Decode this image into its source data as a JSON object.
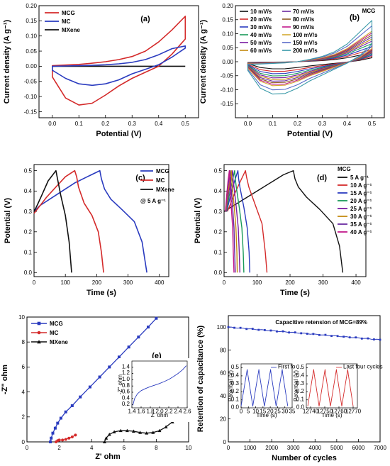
{
  "chart_data": [
    {
      "id": "a",
      "type": "line",
      "panel_label": "(a)",
      "xlabel": "Potential (V)",
      "ylabel": "Current density (A g⁻¹)",
      "xlim": [
        -0.05,
        0.55
      ],
      "ylim": [
        -0.17,
        0.2
      ],
      "xticks": [
        0.0,
        0.1,
        0.2,
        0.3,
        0.4,
        0.5
      ],
      "yticks": [
        -0.15,
        -0.1,
        -0.05,
        0.0,
        0.05,
        0.1,
        0.15,
        0.2
      ],
      "legend": "top-left",
      "series": [
        {
          "name": "MCG",
          "color": "#d42a2a",
          "x": [
            0,
            0.05,
            0.1,
            0.15,
            0.2,
            0.25,
            0.3,
            0.35,
            0.4,
            0.45,
            0.5,
            0.5,
            0.45,
            0.4,
            0.35,
            0.3,
            0.25,
            0.2,
            0.15,
            0.1,
            0.05,
            0
          ],
          "y": [
            0.002,
            0.004,
            0.006,
            0.01,
            0.015,
            0.022,
            0.032,
            0.05,
            0.08,
            0.12,
            0.165,
            0.09,
            0.04,
            0.0,
            -0.02,
            -0.04,
            -0.065,
            -0.095,
            -0.122,
            -0.128,
            -0.105,
            -0.035
          ]
        },
        {
          "name": "MC",
          "color": "#2a3bbf",
          "x": [
            0,
            0.05,
            0.1,
            0.15,
            0.2,
            0.25,
            0.3,
            0.35,
            0.4,
            0.45,
            0.5,
            0.5,
            0.45,
            0.4,
            0.35,
            0.3,
            0.25,
            0.2,
            0.15,
            0.1,
            0.05,
            0
          ],
          "y": [
            0.0,
            0.001,
            0.002,
            0.003,
            0.005,
            0.008,
            0.013,
            0.022,
            0.038,
            0.058,
            0.067,
            0.06,
            0.03,
            0.005,
            -0.01,
            -0.025,
            -0.045,
            -0.058,
            -0.063,
            -0.058,
            -0.04,
            -0.013
          ]
        },
        {
          "name": "MXene",
          "color": "#111111",
          "x": [
            0,
            0.5,
            0.5,
            0
          ],
          "y": [
            0.001,
            0.002,
            -0.001,
            -0.002
          ]
        }
      ]
    },
    {
      "id": "b",
      "type": "line",
      "panel_label": "(b)",
      "title": "MCG",
      "xlabel": "Potential (V)",
      "ylabel": "Current density (A g⁻¹)",
      "xlim": [
        -0.05,
        0.55
      ],
      "ylim": [
        -0.2,
        0.2
      ],
      "xticks": [
        0.0,
        0.1,
        0.2,
        0.3,
        0.4,
        0.5
      ],
      "yticks": [
        -0.15,
        -0.1,
        -0.05,
        0.0,
        0.05,
        0.1,
        0.15,
        0.2
      ],
      "legend": "top-left",
      "series": [
        {
          "name": "10 mV/s",
          "color": "#111111",
          "scale": 0.22
        },
        {
          "name": "20 mV/s",
          "color": "#d42a2a",
          "scale": 0.3
        },
        {
          "name": "30 mV/s",
          "color": "#2a3bbf",
          "scale": 0.37
        },
        {
          "name": "40 mV/s",
          "color": "#1a9a5a",
          "scale": 0.44
        },
        {
          "name": "50 mV/s",
          "color": "#7a1aa0",
          "scale": 0.5
        },
        {
          "name": "60 mV/s",
          "color": "#c48a10",
          "scale": 0.55
        },
        {
          "name": "70 mV/s",
          "color": "#6a2aa0",
          "scale": 0.6
        },
        {
          "name": "80 mV/s",
          "color": "#8a5a20",
          "scale": 0.65
        },
        {
          "name": "90 mV/s",
          "color": "#c2188a",
          "scale": 0.7
        },
        {
          "name": "100 mV/s",
          "color": "#d4aa30",
          "scale": 0.74
        },
        {
          "name": "150 mV/s",
          "color": "#5a6ac8",
          "scale": 0.87
        },
        {
          "name": "200 mV/s",
          "color": "#3a9aa8",
          "scale": 1.0
        }
      ],
      "base_shape": {
        "x": [
          0,
          0.05,
          0.1,
          0.15,
          0.2,
          0.25,
          0.3,
          0.35,
          0.4,
          0.45,
          0.5,
          0.5,
          0.45,
          0.4,
          0.35,
          0.3,
          0.25,
          0.2,
          0.15,
          0.1,
          0.05,
          0
        ],
        "y": [
          -0.01,
          -0.008,
          -0.006,
          -0.004,
          0.0,
          0.008,
          0.018,
          0.034,
          0.06,
          0.1,
          0.14,
          0.06,
          0.02,
          -0.005,
          -0.025,
          -0.045,
          -0.065,
          -0.09,
          -0.108,
          -0.11,
          -0.09,
          -0.03
        ]
      }
    },
    {
      "id": "c",
      "type": "line",
      "panel_label": "(c)",
      "annotation": "@ 5 A g⁻¹",
      "xlabel": "Time (s)",
      "ylabel": "Potential (V)",
      "xlim": [
        0,
        430
      ],
      "ylim": [
        -0.02,
        0.53
      ],
      "xticks": [
        0,
        100,
        200,
        300,
        400
      ],
      "yticks": [
        0.0,
        0.1,
        0.2,
        0.3,
        0.4,
        0.5
      ],
      "legend": "right",
      "series": [
        {
          "name": "MCG",
          "color": "#2a3bbf",
          "x": [
            0,
            20,
            50,
            90,
            130,
            170,
            210,
            215,
            225,
            245,
            280,
            320,
            345,
            360
          ],
          "y": [
            0.3,
            0.33,
            0.36,
            0.4,
            0.44,
            0.47,
            0.5,
            0.46,
            0.41,
            0.36,
            0.31,
            0.25,
            0.15,
            0.0
          ]
        },
        {
          "name": "MC",
          "color": "#d42a2a",
          "x": [
            0,
            15,
            40,
            70,
            100,
            130,
            136,
            142,
            160,
            185,
            205,
            215,
            222
          ],
          "y": [
            0.29,
            0.32,
            0.37,
            0.42,
            0.47,
            0.5,
            0.47,
            0.42,
            0.34,
            0.28,
            0.2,
            0.1,
            0.0
          ]
        },
        {
          "name": "MXene",
          "color": "#111111",
          "x": [
            0,
            10,
            25,
            45,
            70,
            75,
            85,
            100,
            112,
            120
          ],
          "y": [
            0.3,
            0.33,
            0.38,
            0.45,
            0.5,
            0.46,
            0.38,
            0.28,
            0.15,
            0.0
          ]
        }
      ]
    },
    {
      "id": "d",
      "type": "line",
      "panel_label": "(d)",
      "title": "MCG",
      "xlabel": "Time (s)",
      "ylabel": "Potential (V)",
      "xlim": [
        0,
        430
      ],
      "ylim": [
        -0.02,
        0.53
      ],
      "xticks": [
        0,
        100,
        200,
        300,
        400
      ],
      "yticks": [
        0.0,
        0.1,
        0.2,
        0.3,
        0.4,
        0.5
      ],
      "legend": "right",
      "series": [
        {
          "name": "5 A g⁻¹",
          "color": "#111111",
          "x": [
            0,
            30,
            70,
            110,
            150,
            180,
            210,
            215,
            225,
            250,
            290,
            330,
            350,
            360
          ],
          "y": [
            0.3,
            0.33,
            0.37,
            0.41,
            0.45,
            0.48,
            0.5,
            0.46,
            0.42,
            0.37,
            0.31,
            0.24,
            0.13,
            0.0
          ]
        },
        {
          "name": "10 A g⁻¹",
          "color": "#d42a2a",
          "x": [
            10,
            30,
            50,
            65,
            68,
            75,
            95,
            115,
            125,
            130
          ],
          "y": [
            0.3,
            0.38,
            0.45,
            0.5,
            0.47,
            0.42,
            0.33,
            0.24,
            0.1,
            0.0
          ]
        },
        {
          "name": "15 A g⁻¹",
          "color": "#2a3bbf",
          "x": [
            8,
            20,
            32,
            42,
            44,
            48,
            60,
            70,
            76,
            78
          ],
          "y": [
            0.3,
            0.38,
            0.45,
            0.5,
            0.46,
            0.42,
            0.32,
            0.22,
            0.1,
            0.0
          ]
        },
        {
          "name": "20 A g⁻¹",
          "color": "#1a9a5a",
          "x": [
            7,
            16,
            25,
            32,
            34,
            37,
            46,
            54,
            58,
            60
          ],
          "y": [
            0.3,
            0.38,
            0.45,
            0.5,
            0.46,
            0.42,
            0.32,
            0.22,
            0.1,
            0.0
          ]
        },
        {
          "name": "25 A g⁻¹",
          "color": "#7a1aa0",
          "x": [
            6,
            13,
            20,
            26,
            27,
            30,
            37,
            43,
            46,
            48
          ],
          "y": [
            0.3,
            0.38,
            0.45,
            0.5,
            0.46,
            0.42,
            0.32,
            0.22,
            0.1,
            0.0
          ]
        },
        {
          "name": "30 A g⁻¹",
          "color": "#c48a10",
          "x": [
            5,
            11,
            17,
            22,
            23,
            25,
            31,
            36,
            39,
            40
          ],
          "y": [
            0.3,
            0.38,
            0.45,
            0.5,
            0.46,
            0.42,
            0.32,
            0.22,
            0.1,
            0.0
          ]
        },
        {
          "name": "35 A g⁻¹",
          "color": "#6a2aa0",
          "x": [
            4,
            9,
            14,
            18,
            19,
            21,
            26,
            30,
            32,
            34
          ],
          "y": [
            0.3,
            0.38,
            0.45,
            0.5,
            0.46,
            0.42,
            0.32,
            0.22,
            0.1,
            0.0
          ]
        },
        {
          "name": "40 A g⁻¹",
          "color": "#c2188a",
          "x": [
            4,
            8,
            12,
            16,
            17,
            18,
            22,
            26,
            28,
            30
          ],
          "y": [
            0.3,
            0.38,
            0.45,
            0.5,
            0.46,
            0.42,
            0.32,
            0.22,
            0.1,
            0.0
          ]
        }
      ]
    },
    {
      "id": "e",
      "type": "line",
      "panel_label": "(e)",
      "xlabel": "Z' ohm",
      "ylabel": "-Z\" ohm",
      "xlim": [
        0,
        10
      ],
      "ylim": [
        0,
        10
      ],
      "xticks": [
        0,
        2,
        4,
        6,
        8,
        10
      ],
      "yticks": [
        0,
        2,
        4,
        6,
        8,
        10
      ],
      "legend": "top-left",
      "series": [
        {
          "name": "MCG",
          "color": "#2a3bbf",
          "marker": "square",
          "x": [
            1.45,
            1.5,
            1.6,
            1.75,
            1.9,
            2.1,
            2.4,
            2.8,
            3.3,
            3.9,
            4.5,
            5.1,
            5.7,
            6.3,
            6.9,
            7.5,
            8.0
          ],
          "y": [
            0.0,
            0.3,
            0.7,
            1.1,
            1.5,
            1.9,
            2.4,
            2.9,
            3.6,
            4.4,
            5.2,
            6.0,
            6.8,
            7.6,
            8.4,
            9.2,
            9.9
          ]
        },
        {
          "name": "MC",
          "color": "#d42a2a",
          "marker": "circle",
          "x": [
            1.8,
            1.9,
            2.0,
            2.2,
            2.4,
            2.6,
            2.8,
            3.0
          ],
          "y": [
            0.0,
            0.1,
            0.15,
            0.15,
            0.2,
            0.3,
            0.4,
            0.55
          ]
        },
        {
          "name": "MXene",
          "color": "#111111",
          "marker": "triangle",
          "x": [
            4.8,
            4.9,
            5.1,
            5.4,
            5.8,
            6.2,
            6.6,
            7.0,
            7.4,
            7.8,
            8.2,
            8.6,
            9.0,
            9.2
          ],
          "y": [
            0.0,
            0.3,
            0.6,
            0.8,
            0.9,
            0.9,
            0.85,
            0.75,
            0.7,
            0.75,
            0.9,
            1.2,
            1.6,
            2.0
          ]
        }
      ],
      "inset": {
        "xlabel": "Z' ohm",
        "ylabel": "-Z\" ohm",
        "xlim": [
          1.4,
          2.6
        ],
        "ylim": [
          0.1,
          1.6
        ],
        "xticks": [
          1.4,
          1.6,
          1.8,
          2.0,
          2.2,
          2.4,
          2.6
        ],
        "yticks": [
          0.2,
          0.4,
          0.6,
          0.8,
          1.0,
          1.2,
          1.4
        ],
        "series": [
          {
            "name": "MCG",
            "color": "#2a3bbf",
            "x": [
              1.42,
              1.46,
              1.52,
              1.6,
              1.7,
              1.8,
              1.9,
              2.0,
              2.1,
              2.2,
              2.3,
              2.4,
              2.5,
              2.58
            ],
            "y": [
              0.18,
              0.4,
              0.55,
              0.65,
              0.72,
              0.78,
              0.83,
              0.88,
              0.94,
              1.01,
              1.1,
              1.2,
              1.32,
              1.45
            ]
          }
        ]
      }
    },
    {
      "id": "f",
      "type": "line",
      "panel_label": "(f)",
      "annotation": "Capacitive retension of MCG=89%",
      "xlabel": "Number of cycles",
      "ylabel": "Retention of capacitance (%)",
      "xlim": [
        0,
        7000
      ],
      "ylim": [
        0,
        110
      ],
      "xticks": [
        0,
        1000,
        2000,
        3000,
        4000,
        5000,
        6000,
        7000
      ],
      "yticks": [
        0,
        20,
        40,
        60,
        80,
        100
      ],
      "series": [
        {
          "name": "MCG",
          "color": "#2a3bbf",
          "marker": "square",
          "x": [
            0,
            500,
            1000,
            1500,
            2000,
            2500,
            3000,
            3500,
            4000,
            4500,
            5000,
            5500,
            6000,
            6500,
            7000
          ],
          "y": [
            100,
            99.6,
            98.9,
            98.1,
            97.3,
            96.5,
            95.6,
            94.7,
            93.9,
            93.0,
            92.2,
            91.4,
            90.6,
            89.8,
            89.0
          ]
        }
      ],
      "insets": [
        {
          "legend": "First four cycles",
          "color": "#2a3bbf",
          "xlabel": "Time (s)",
          "ylabel": "Potential (V)",
          "xlim": [
            0,
            35
          ],
          "ylim": [
            0,
            0.55
          ],
          "xticks": [
            0,
            5,
            10,
            15,
            20,
            25,
            30,
            35
          ],
          "yticks": [
            0.0,
            0.1,
            0.2,
            0.3,
            0.4,
            0.5
          ],
          "t0": 0,
          "period": 8
        },
        {
          "legend": "Last four cycles",
          "color": "#d42a2a",
          "xlabel": "Time (s)",
          "ylabel": "Potential (V)",
          "xlim": [
            12737,
            12773
          ],
          "ylim": [
            0,
            0.55
          ],
          "xticks": [
            12740,
            12750,
            12760,
            12770
          ],
          "yticks": [
            0.0,
            0.1,
            0.2,
            0.3,
            0.4,
            0.5
          ],
          "t0": 12738,
          "period": 8
        }
      ]
    }
  ]
}
